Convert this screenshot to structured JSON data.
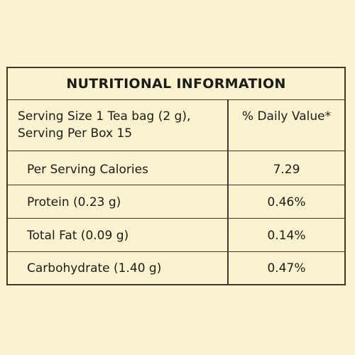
{
  "panel": {
    "title": "NUTRITIONAL INFORMATION",
    "header_left_line1": "Serving Size 1 Tea bag (2 g),",
    "header_left_line2": "Serving Per Box 15",
    "header_right": "% Daily Value*",
    "rows": [
      {
        "label": "Per Serving Calories",
        "value": "7.29"
      },
      {
        "label": "Protein (0.23 g)",
        "value": "0.46%"
      },
      {
        "label": "Total Fat (0.09 g)",
        "value": "0.14%"
      },
      {
        "label": "Carbohydrate (1.40 g)",
        "value": "0.47%"
      }
    ]
  },
  "colors": {
    "background": "#fbf3cf",
    "border": "#3f3a2a",
    "text": "#1c1b17"
  }
}
